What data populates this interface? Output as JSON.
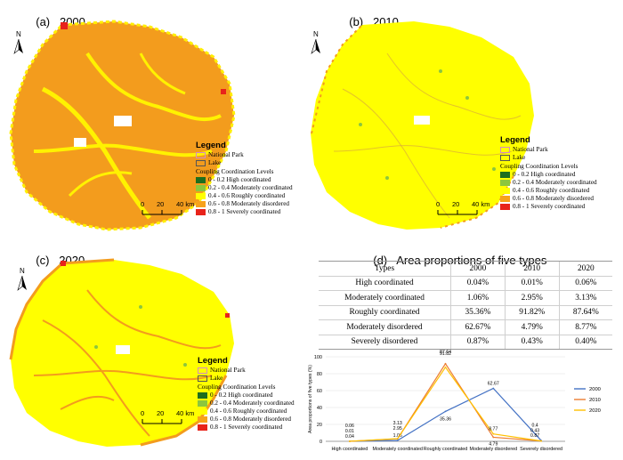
{
  "panels": [
    {
      "label": "(a)",
      "year": "2000"
    },
    {
      "label": "(b)",
      "year": "2010"
    },
    {
      "label": "(c)",
      "year": "2020"
    }
  ],
  "panel_d": {
    "label": "(d)",
    "title": "Area proportions of five types"
  },
  "north_label": "N",
  "scale": {
    "t0": "0",
    "t1": "20",
    "t2": "40 km"
  },
  "legend": {
    "title": "Legend",
    "national_park": "National Park",
    "lake": "Lake",
    "levels_title": "Coupling Coordination Levels",
    "items": [
      {
        "label": "0 - 0.2 High coordinated",
        "color": "#1e6e1e"
      },
      {
        "label": "0.2 - 0.4 Moderately coordinated",
        "color": "#8cc63e"
      },
      {
        "label": "0.4 - 0.6 Roughly coordinated",
        "color": "#ffff00"
      },
      {
        "label": "0.6 - 0.8 Moderately disordered",
        "color": "#f7a21b"
      },
      {
        "label": "0.8 - 1 Severely coordinated",
        "color": "#e8231b"
      }
    ]
  },
  "table": {
    "headers": [
      "Types",
      "2000",
      "2010",
      "2020"
    ],
    "rows": [
      [
        "High coordinated",
        "0.04%",
        "0.01%",
        "0.06%"
      ],
      [
        "Moderately coordinated",
        "1.06%",
        "2.95%",
        "3.13%"
      ],
      [
        "Roughly coordinated",
        "35.36%",
        "91.82%",
        "87.64%"
      ],
      [
        "Moderately disordered",
        "62.67%",
        "4.79%",
        "8.77%"
      ],
      [
        "Severely disordered",
        "0.87%",
        "0.43%",
        "0.40%"
      ]
    ]
  },
  "chart_data": {
    "type": "line",
    "categories": [
      "High coordinated",
      "Moderately coordinated",
      "Roughly coordinated",
      "Moderately disordered",
      "Severely disordered"
    ],
    "series": [
      {
        "name": "2000",
        "values": [
          0.04,
          1.06,
          35.36,
          62.67,
          0.87
        ],
        "color": "#4472c4"
      },
      {
        "name": "2010",
        "values": [
          0.01,
          2.95,
          91.82,
          4.79,
          0.43
        ],
        "color": "#ed7d31"
      },
      {
        "name": "2020",
        "values": [
          0.06,
          3.13,
          87.64,
          8.77,
          0.4
        ],
        "color": "#ffc000"
      }
    ],
    "ylabel": "Area proportions of five types (%)",
    "ylim": [
      0,
      100
    ],
    "yticks": [
      "0",
      "20",
      "40",
      "60",
      "80",
      "100"
    ],
    "legend_position": "right"
  }
}
